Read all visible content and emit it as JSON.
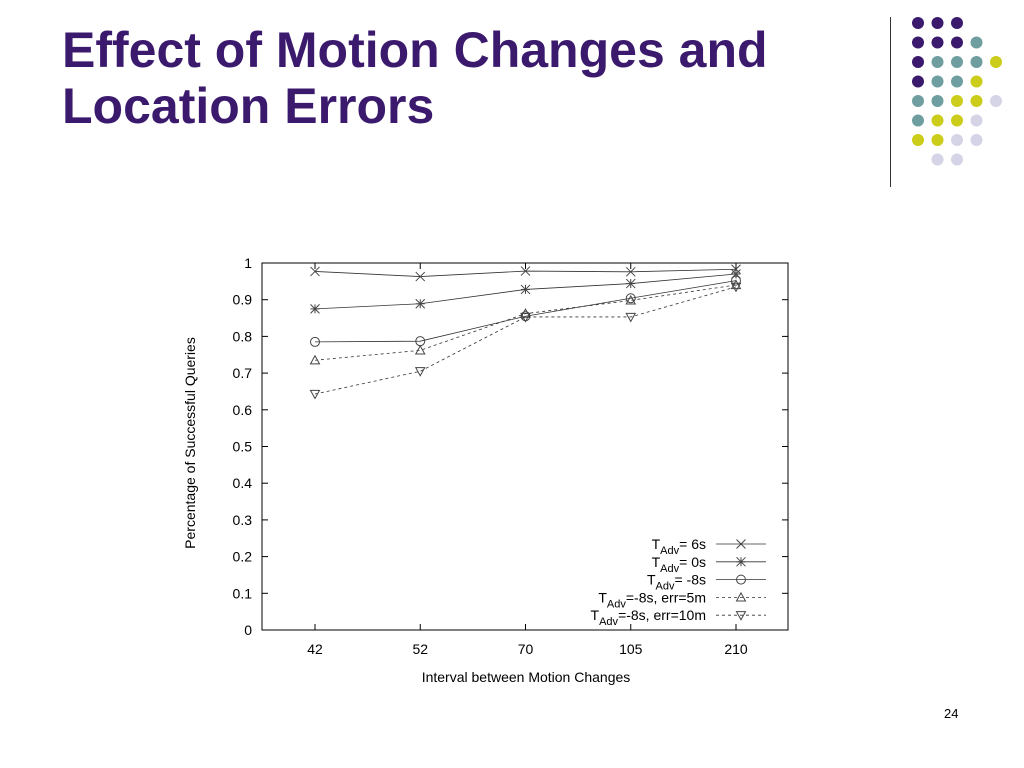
{
  "slide": {
    "title_line1": "Effect of Motion Changes and",
    "title_line2": "Location Errors",
    "page_number": "24"
  },
  "decoration": {
    "dot_rows": [
      [
        "purple",
        "purple",
        "purple"
      ],
      [
        "purple",
        "purple",
        "purple",
        "teal"
      ],
      [
        "purple",
        "teal",
        "teal",
        "teal",
        "yellow"
      ],
      [
        "purple",
        "teal",
        "teal",
        "yellow"
      ],
      [
        "teal",
        "teal",
        "yellow",
        "yellow",
        "lavender"
      ],
      [
        "teal",
        "yellow",
        "yellow",
        "lavender"
      ],
      [
        "yellow",
        "yellow",
        "lavender",
        "lavender"
      ],
      [
        "lavender",
        "lavender"
      ]
    ],
    "colors": {
      "purple": "#3b1a6e",
      "teal": "#6f9ea0",
      "yellow": "#cccc1a",
      "lavender": "#d4d4e6"
    }
  },
  "chart_data": {
    "type": "line",
    "xlabel": "Interval between Motion Changes",
    "ylabel": "Percentage of Successful Queries",
    "categories": [
      "42",
      "52",
      "70",
      "105",
      "210"
    ],
    "ylim": [
      0,
      1
    ],
    "yticks": [
      "0",
      "0.1",
      "0.2",
      "0.3",
      "0.4",
      "0.5",
      "0.6",
      "0.7",
      "0.8",
      "0.9",
      "1"
    ],
    "grid": false,
    "legend_position": "bottom-right",
    "series": [
      {
        "name": "T_Adv= 6s",
        "name_base": "T",
        "name_sub": "Adv",
        "name_rest": "= 6s",
        "marker": "x",
        "dashed": false,
        "values": [
          0.977,
          0.963,
          0.978,
          0.976,
          0.983
        ]
      },
      {
        "name": "T_Adv= 0s",
        "name_base": "T",
        "name_sub": "Adv",
        "name_rest": "= 0s",
        "marker": "star",
        "dashed": false,
        "values": [
          0.875,
          0.889,
          0.928,
          0.944,
          0.97
        ]
      },
      {
        "name": "T_Adv= -8s",
        "name_base": "T",
        "name_sub": "Adv",
        "name_rest": "= -8s",
        "marker": "circle",
        "dashed": false,
        "values": [
          0.785,
          0.787,
          0.855,
          0.904,
          0.952
        ]
      },
      {
        "name": "T_Adv=-8s, err=5m",
        "name_base": "T",
        "name_sub": "Adv",
        "name_rest": "=-8s, err=5m",
        "marker": "triangle-up",
        "dashed": true,
        "values": [
          0.735,
          0.762,
          0.862,
          0.898,
          0.94
        ]
      },
      {
        "name": "T_Adv=-8s, err=10m",
        "name_base": "T",
        "name_sub": "Adv",
        "name_rest": "=-8s, err=10m",
        "marker": "triangle-down",
        "dashed": true,
        "values": [
          0.643,
          0.705,
          0.853,
          0.853,
          0.935
        ]
      }
    ]
  }
}
